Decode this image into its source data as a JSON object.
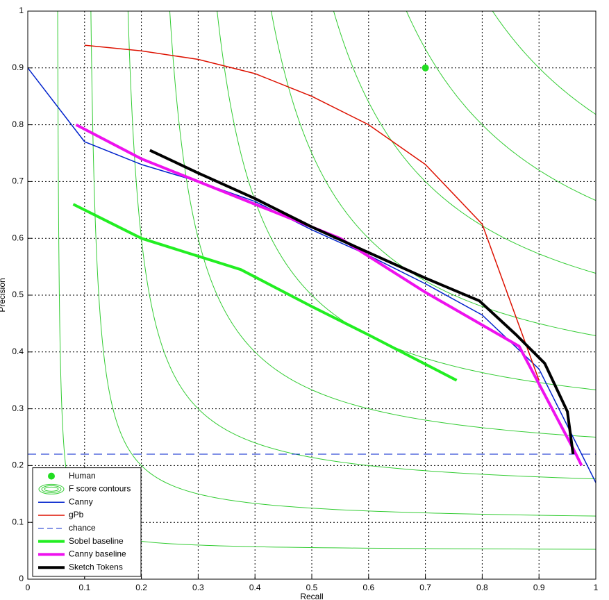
{
  "chart_data": {
    "type": "line",
    "xlabel": "Recall",
    "ylabel": "Precision",
    "xlim": [
      0,
      1
    ],
    "ylim": [
      0,
      1
    ],
    "xticks": [
      0,
      0.1,
      0.2,
      0.3,
      0.4,
      0.5,
      0.6,
      0.7,
      0.8,
      0.9,
      1
    ],
    "yticks": [
      0,
      0.1,
      0.2,
      0.3,
      0.4,
      0.5,
      0.6,
      0.7,
      0.8,
      0.9,
      1
    ],
    "grid": true,
    "legend": "lower left",
    "series": [
      {
        "name": "Human",
        "color": "#22dd22",
        "marker": true,
        "x": [
          0.7
        ],
        "values": [
          0.9
        ]
      },
      {
        "name": "F score contours",
        "color": "#33cc33",
        "levels": [
          0.1,
          0.2,
          0.3,
          0.4,
          0.5,
          0.6,
          0.7,
          0.8,
          0.9
        ]
      },
      {
        "name": "Canny",
        "color": "#0022cc",
        "width": 1.5,
        "x": [
          0,
          0.1,
          0.2,
          0.3,
          0.4,
          0.5,
          0.6,
          0.7,
          0.8,
          0.9,
          0.95,
          1
        ],
        "values": [
          0.9,
          0.77,
          0.73,
          0.7,
          0.665,
          0.615,
          0.57,
          0.52,
          0.465,
          0.37,
          0.27,
          0.17
        ]
      },
      {
        "name": "gPb",
        "color": "#dd1100",
        "width": 1.5,
        "x": [
          0.1,
          0.2,
          0.3,
          0.4,
          0.5,
          0.6,
          0.7,
          0.8,
          0.9
        ],
        "values": [
          0.94,
          0.93,
          0.915,
          0.89,
          0.85,
          0.8,
          0.73,
          0.625,
          0.35
        ]
      },
      {
        "name": "chance",
        "color": "#0022cc",
        "width": 1,
        "dash": true,
        "x": [
          0,
          1
        ],
        "values": [
          0.22,
          0.22
        ]
      },
      {
        "name": "Sobel baseline",
        "color": "#22ee22",
        "width": 4,
        "x": [
          0.08,
          0.2,
          0.375,
          0.5,
          0.6,
          0.755
        ],
        "values": [
          0.66,
          0.6,
          0.545,
          0.48,
          0.43,
          0.35
        ]
      },
      {
        "name": "Canny baseline",
        "color": "#ee11ee",
        "width": 4,
        "x": [
          0.085,
          0.2,
          0.3,
          0.4,
          0.55,
          0.7,
          0.865,
          0.96,
          0.975
        ],
        "values": [
          0.8,
          0.74,
          0.7,
          0.66,
          0.6,
          0.505,
          0.41,
          0.23,
          0.2
        ]
      },
      {
        "name": "Sketch Tokens",
        "color": "#000000",
        "width": 4,
        "x": [
          0.215,
          0.3,
          0.4,
          0.5,
          0.6,
          0.7,
          0.795,
          0.86,
          0.91,
          0.95,
          0.96
        ],
        "values": [
          0.755,
          0.715,
          0.67,
          0.62,
          0.575,
          0.53,
          0.49,
          0.43,
          0.38,
          0.295,
          0.22
        ]
      }
    ]
  }
}
